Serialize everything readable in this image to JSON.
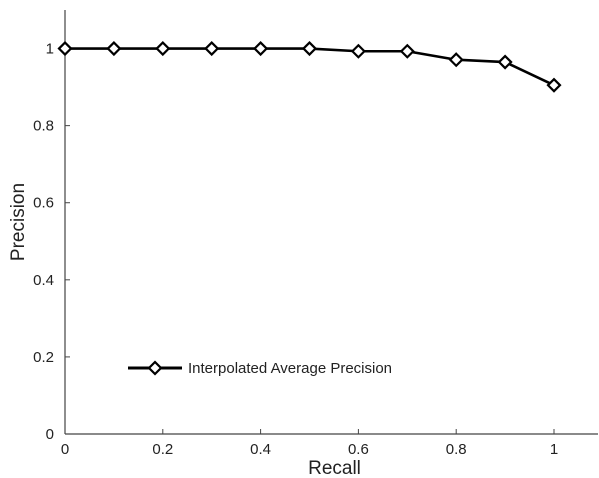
{
  "chart_data": {
    "type": "line",
    "title": "",
    "xlabel": "Recall",
    "ylabel": "Precision",
    "xlim": [
      0,
      1.09
    ],
    "ylim": [
      0,
      1.1
    ],
    "xticks": [
      "0",
      "0.2",
      "0.4",
      "0.6",
      "0.8",
      "1"
    ],
    "yticks": [
      "0",
      "0.2",
      "0.4",
      "0.6",
      "0.8",
      "1"
    ],
    "grid": false,
    "legend_position": "lower-left",
    "series": [
      {
        "name": "Interpolated Average Precision",
        "marker": "diamond",
        "color": "#000000",
        "x": [
          0,
          0.1,
          0.2,
          0.3,
          0.4,
          0.5,
          0.6,
          0.7,
          0.8,
          0.9,
          1.0
        ],
        "y": [
          1.0,
          1.0,
          1.0,
          1.0,
          1.0,
          1.0,
          0.993,
          0.993,
          0.971,
          0.965,
          0.905
        ]
      }
    ]
  }
}
